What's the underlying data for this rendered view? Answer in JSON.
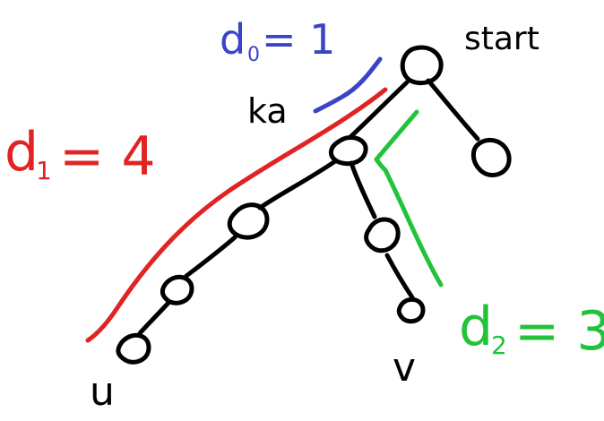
{
  "colors": {
    "ink": "#000000",
    "blue": "#3a44c8",
    "red": "#e02424",
    "green": "#22c33a"
  },
  "labels": {
    "start": "start",
    "ka": "ka",
    "u": "u",
    "v": "v",
    "d0": "d0 = 1",
    "d0_sym": "d",
    "d0_sub": "0",
    "d0_val": "= 1",
    "d1_sym": "d",
    "d1_sub": "1",
    "d1_val": "= 4",
    "d2_sym": "d",
    "d2_sub": "2",
    "d2_val": "= 3"
  }
}
